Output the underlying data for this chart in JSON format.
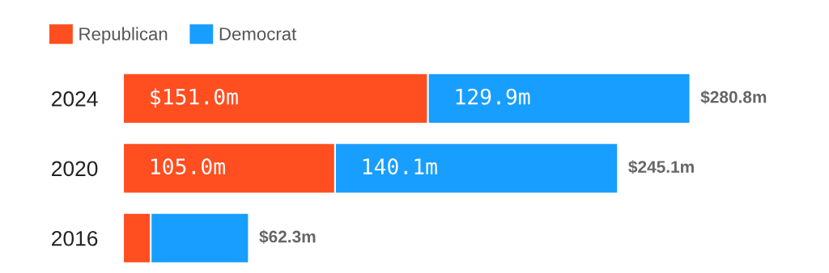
{
  "chart_data": {
    "type": "bar",
    "orientation": "horizontal",
    "stacked": true,
    "legend": "top left",
    "categories": [
      "2024",
      "2020",
      "2016"
    ],
    "series": [
      {
        "name": "Republican",
        "color": "#ff4e1f",
        "values": [
          151.0,
          105.0,
          13.7
        ],
        "value_labels": [
          "$151.0m",
          "105.0m",
          null
        ]
      },
      {
        "name": "Democrat",
        "color": "#189eff",
        "values": [
          129.9,
          140.1,
          48.6
        ],
        "value_labels": [
          "129.9m",
          "140.1m",
          null
        ]
      }
    ],
    "totals": [
      "$280.8m",
      "$245.1m",
      "$62.3m"
    ]
  }
}
